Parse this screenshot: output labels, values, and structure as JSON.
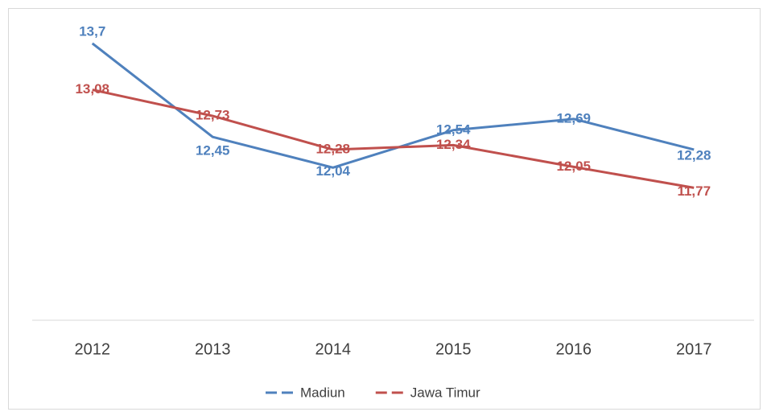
{
  "chart_data": {
    "type": "line",
    "categories": [
      "2012",
      "2013",
      "2014",
      "2015",
      "2016",
      "2017"
    ],
    "series": [
      {
        "name": "Madiun",
        "color": "#4f81bd",
        "values": [
          13.7,
          12.45,
          12.04,
          12.54,
          12.69,
          12.28
        ],
        "value_labels": [
          "13,7",
          "12,45",
          "12,04",
          "12,54",
          "12,69",
          "12,28"
        ]
      },
      {
        "name": "Jawa Timur",
        "color": "#c0504d",
        "values": [
          13.08,
          12.73,
          12.28,
          12.34,
          12.05,
          11.77
        ],
        "value_labels": [
          "13,08",
          "12,73",
          "12,28",
          "12,34",
          "12,05",
          "11,77"
        ]
      }
    ],
    "ylim": [
      10,
      14
    ],
    "legend": "bottom"
  }
}
